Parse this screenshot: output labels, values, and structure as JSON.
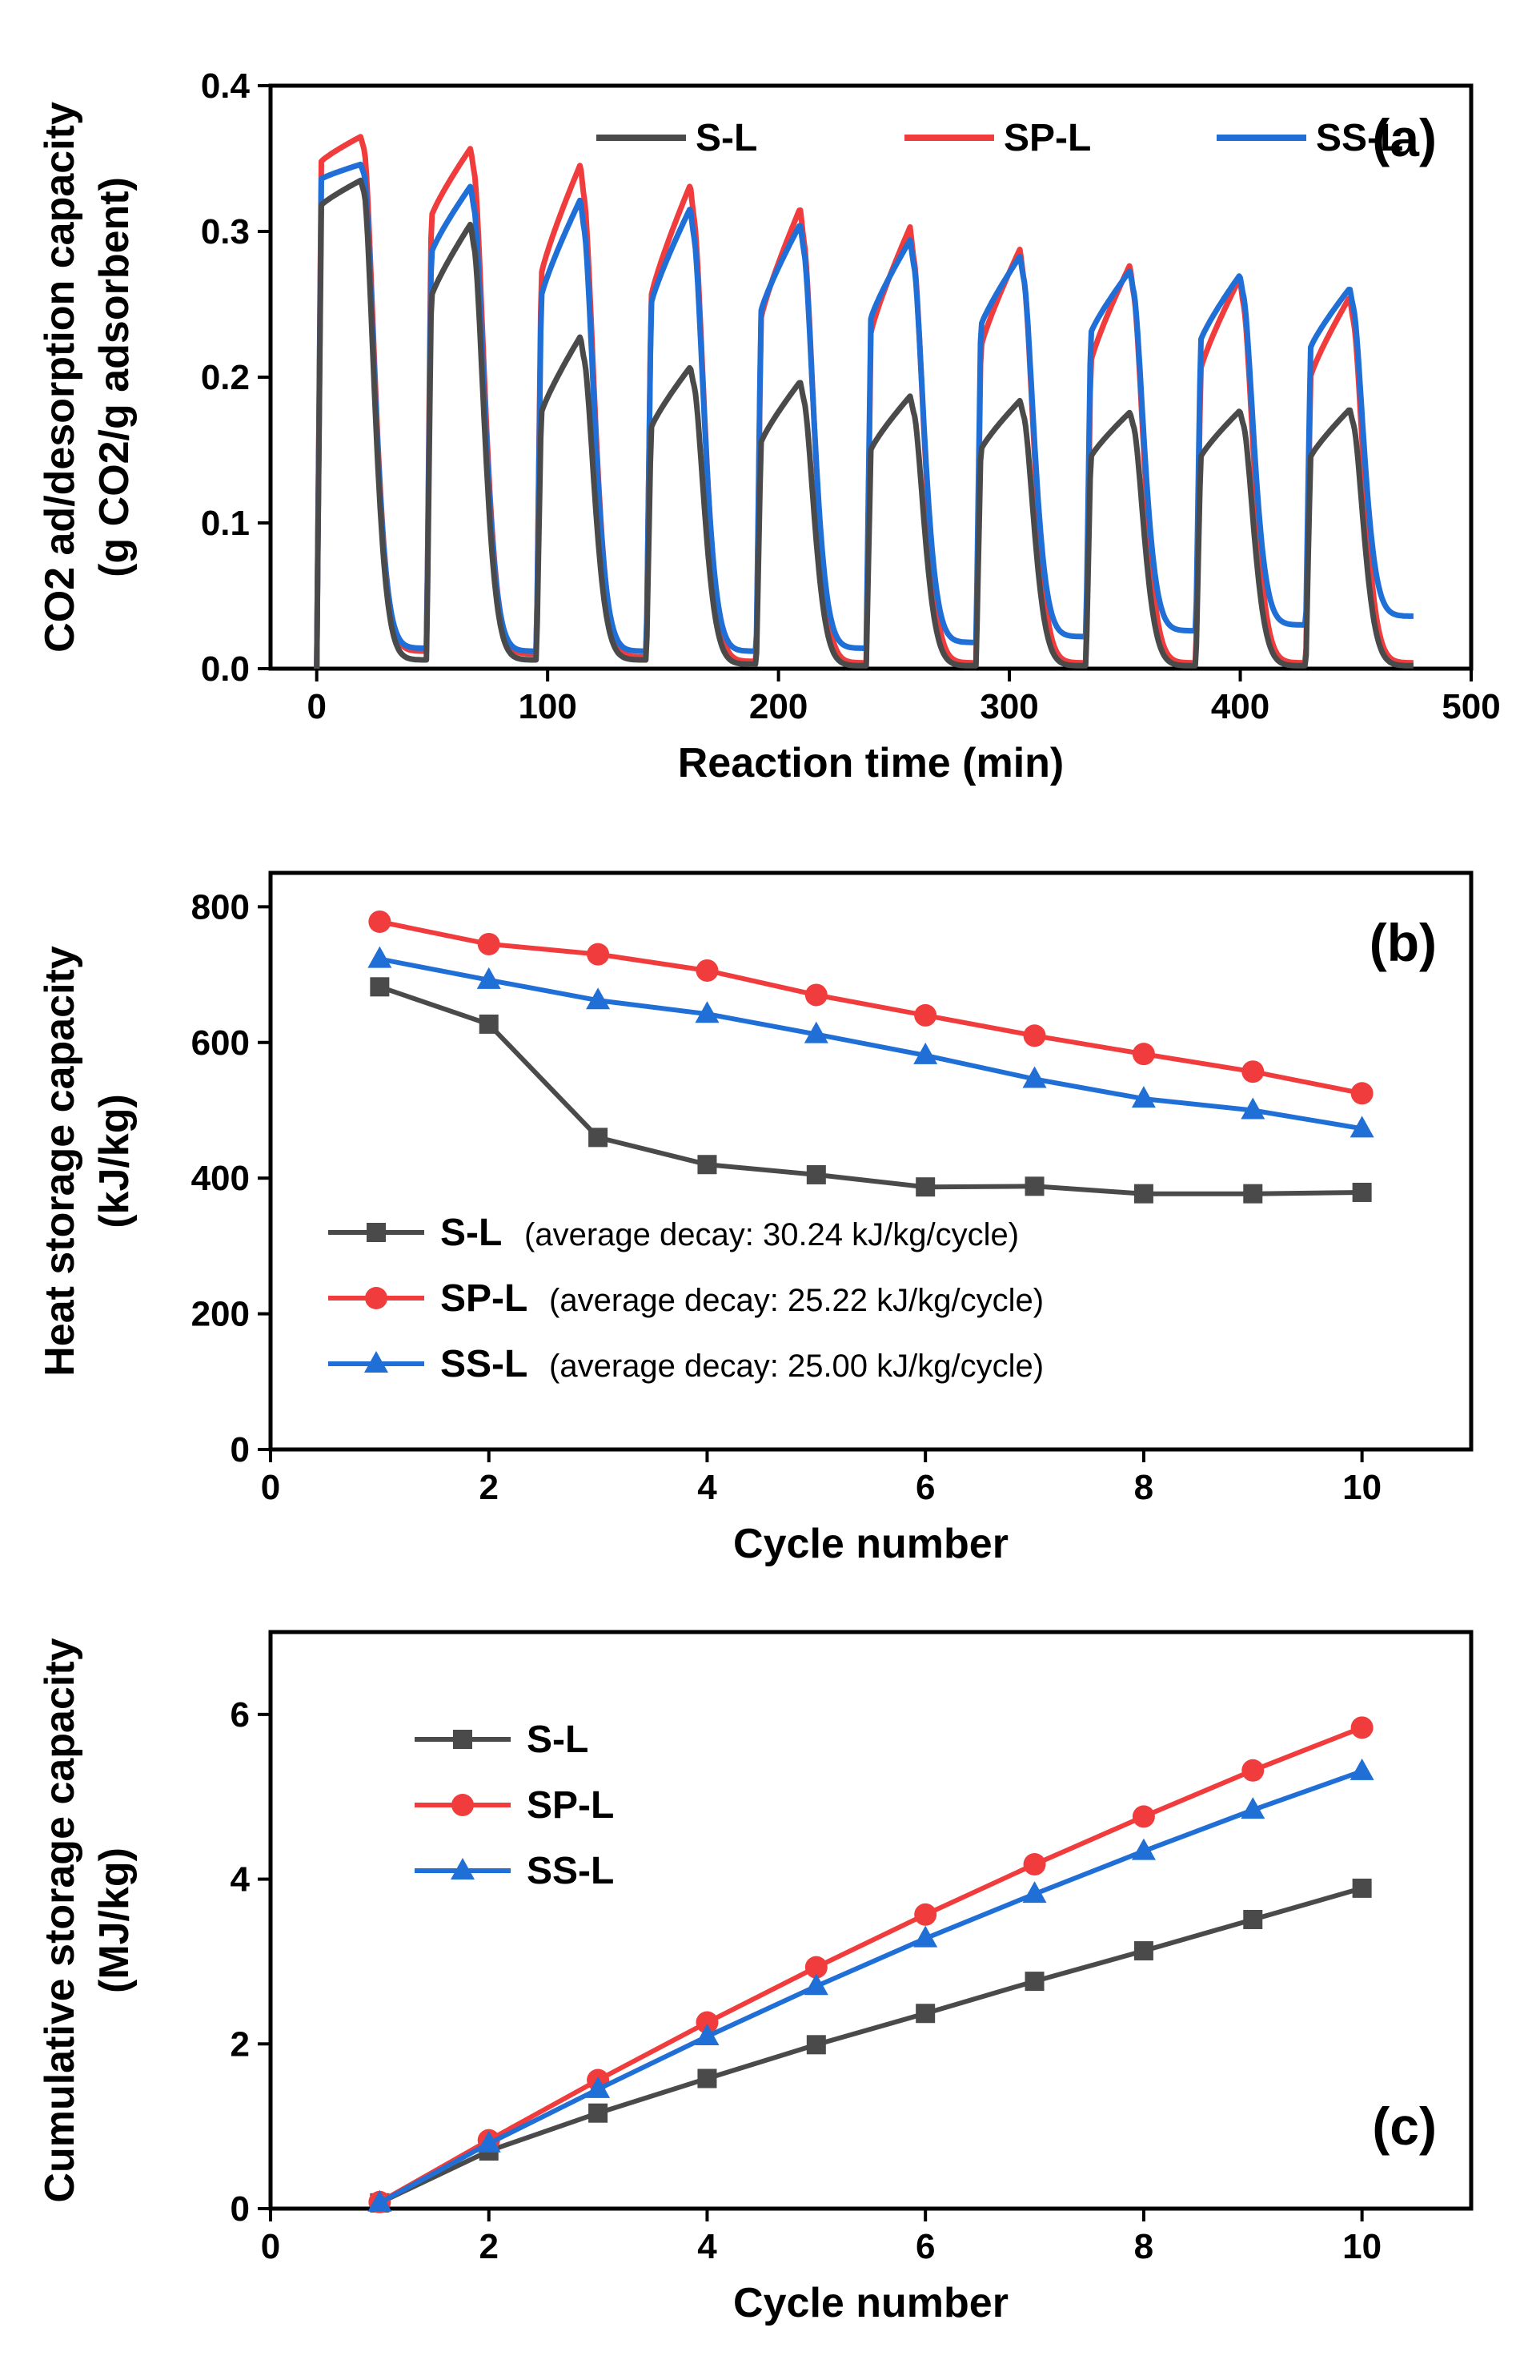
{
  "colors": {
    "S-L": "#4a4a4a",
    "SP-L": "#f03c3c",
    "SS-L": "#1f6fd6"
  },
  "chart_data": [
    {
      "id": "a",
      "type": "line",
      "panel_label": "(a)",
      "xlabel": "Reaction time (min)",
      "ylabel_line1": "CO2 ad/desorption capacity",
      "ylabel_line2": "(g CO2/g adsorbent)",
      "xlim": [
        -20,
        500
      ],
      "ylim": [
        0,
        0.4
      ],
      "xticks": [
        0,
        100,
        200,
        300,
        400,
        500
      ],
      "yticks": [
        0.0,
        0.1,
        0.2,
        0.3,
        0.4
      ],
      "ytick_labels": [
        "0.0",
        "0.1",
        "0.2",
        "0.3",
        "0.4"
      ],
      "legend_position": "top-right",
      "legend": [
        "S-L",
        "SP-L",
        "SS-L"
      ],
      "cycle_period_min": 47.6,
      "series": [
        {
          "name": "S-L",
          "peaks": [
            0.335,
            0.305,
            0.228,
            0.207,
            0.197,
            0.187,
            0.184,
            0.176,
            0.177,
            0.178
          ],
          "baselines": [
            0.006,
            0.006,
            0.006,
            0.003,
            0.002,
            0.002,
            0.002,
            0.002,
            0.002,
            0.002
          ],
          "plateau_start": [
            0.318,
            0.255,
            0.175,
            0.165,
            0.155,
            0.15,
            0.15,
            0.145,
            0.145,
            0.145
          ]
        },
        {
          "name": "SP-L",
          "peaks": [
            0.365,
            0.357,
            0.346,
            0.332,
            0.316,
            0.303,
            0.288,
            0.277,
            0.268,
            0.255
          ],
          "baselines": [
            0.012,
            0.01,
            0.008,
            0.005,
            0.004,
            0.004,
            0.004,
            0.004,
            0.004,
            0.004
          ],
          "plateau_start": [
            0.348,
            0.31,
            0.27,
            0.255,
            0.24,
            0.23,
            0.22,
            0.21,
            0.205,
            0.2
          ]
        },
        {
          "name": "SS-L",
          "peaks": [
            0.346,
            0.331,
            0.322,
            0.316,
            0.305,
            0.294,
            0.283,
            0.273,
            0.27,
            0.261
          ],
          "baselines": [
            0.014,
            0.012,
            0.012,
            0.012,
            0.014,
            0.018,
            0.022,
            0.026,
            0.03,
            0.036
          ],
          "plateau_start": [
            0.336,
            0.285,
            0.255,
            0.25,
            0.245,
            0.24,
            0.235,
            0.23,
            0.225,
            0.22
          ]
        }
      ]
    },
    {
      "id": "b",
      "type": "line",
      "panel_label": "(b)",
      "xlabel": "Cycle number",
      "ylabel_line1": "Heat storage capacity",
      "ylabel_line2": "(kJ/kg)",
      "xlim": [
        0,
        11
      ],
      "ylim": [
        0,
        850
      ],
      "xticks": [
        0,
        2,
        4,
        6,
        8,
        10
      ],
      "yticks": [
        0,
        200,
        400,
        600,
        800
      ],
      "legend_position": "bottom-left",
      "x": [
        1,
        2,
        3,
        4,
        5,
        6,
        7,
        8,
        9,
        10
      ],
      "series": [
        {
          "name": "S-L",
          "marker": "square",
          "note": "(average decay: 30.24 kJ/kg/cycle)",
          "values": [
            682,
            627,
            460,
            420,
            405,
            387,
            388,
            377,
            377,
            379
          ]
        },
        {
          "name": "SP-L",
          "marker": "circle",
          "note": "(average decay: 25.22 kJ/kg/cycle)",
          "values": [
            778,
            745,
            730,
            706,
            670,
            640,
            610,
            583,
            557,
            525
          ]
        },
        {
          "name": "SS-L",
          "marker": "triangle",
          "note": "(average decay: 25.00 kJ/kg/cycle)",
          "values": [
            723,
            692,
            662,
            642,
            612,
            581,
            546,
            517,
            500,
            473
          ]
        }
      ]
    },
    {
      "id": "c",
      "type": "line",
      "panel_label": "(c)",
      "xlabel": "Cycle number",
      "ylabel_line1": "Cumulative storage capacity",
      "ylabel_line2": "(MJ/kg)",
      "xlim": [
        0,
        11
      ],
      "ylim": [
        0,
        7
      ],
      "xticks": [
        0,
        2,
        4,
        6,
        8,
        10
      ],
      "yticks": [
        0,
        2,
        4,
        6
      ],
      "legend_position": "top-left",
      "x": [
        1,
        2,
        3,
        4,
        5,
        6,
        7,
        8,
        9,
        10
      ],
      "series": [
        {
          "name": "S-L",
          "marker": "square",
          "values": [
            0.07,
            0.7,
            1.16,
            1.58,
            1.99,
            2.37,
            2.76,
            3.13,
            3.51,
            3.89
          ]
        },
        {
          "name": "SP-L",
          "marker": "circle",
          "values": [
            0.08,
            0.83,
            1.56,
            2.26,
            2.93,
            3.57,
            4.18,
            4.76,
            5.32,
            5.84
          ]
        },
        {
          "name": "SS-L",
          "marker": "triangle",
          "values": [
            0.07,
            0.79,
            1.45,
            2.09,
            2.7,
            3.28,
            3.82,
            4.34,
            4.84,
            5.31
          ]
        }
      ]
    }
  ]
}
